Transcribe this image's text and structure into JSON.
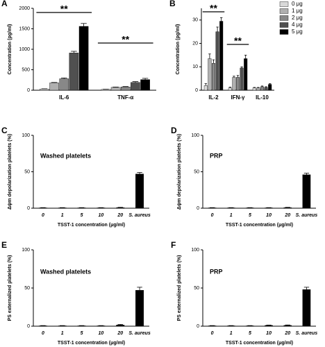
{
  "chart_data": [
    {
      "type": "bar",
      "label": "A",
      "ylabel": "Concentration (pg/ml)",
      "categories": [
        "IL-6",
        "TNF-α"
      ],
      "series": [
        {
          "name": "0 μg",
          "color": "#d9d9d9",
          "values": [
            30,
            20
          ],
          "errors": [
            5,
            4
          ]
        },
        {
          "name": "1 μg",
          "color": "#b0b0b0",
          "values": [
            180,
            70
          ],
          "errors": [
            10,
            8
          ]
        },
        {
          "name": "2 μg",
          "color": "#888888",
          "values": [
            280,
            80
          ],
          "errors": [
            20,
            10
          ]
        },
        {
          "name": "4 μg",
          "color": "#505050",
          "values": [
            910,
            190
          ],
          "errors": [
            40,
            20
          ]
        },
        {
          "name": "5 μg",
          "color": "#000000",
          "values": [
            1560,
            260
          ],
          "errors": [
            70,
            30
          ]
        }
      ],
      "ylim": [
        0,
        2000
      ],
      "yticks": [
        0,
        500,
        1000,
        1500,
        2000
      ],
      "annotations": [
        "**",
        "**"
      ]
    },
    {
      "type": "bar",
      "label": "B",
      "ylabel": "Concentration (pg/ml)",
      "categories": [
        "IL-2",
        "IFN-γ",
        "IL-10"
      ],
      "series": [
        {
          "name": "0 μg",
          "color": "#d9d9d9",
          "values": [
            2,
            1,
            1
          ],
          "errors": [
            0.8,
            0.3,
            0.2
          ]
        },
        {
          "name": "1 μg",
          "color": "#b0b0b0",
          "values": [
            13.5,
            5.5,
            1
          ],
          "errors": [
            2,
            0.5,
            0.2
          ]
        },
        {
          "name": "2 μg",
          "color": "#888888",
          "values": [
            11.5,
            5.5,
            1.5
          ],
          "errors": [
            1.5,
            0.8,
            0.3
          ]
        },
        {
          "name": "4 μg",
          "color": "#505050",
          "values": [
            25,
            9.5,
            1.2
          ],
          "errors": [
            2,
            0.5,
            0.3
          ]
        },
        {
          "name": "5 μg",
          "color": "#000000",
          "values": [
            29.5,
            13.5,
            2.5
          ],
          "errors": [
            1.5,
            1.5,
            0.3
          ]
        }
      ],
      "ylim": [
        0,
        35
      ],
      "yticks": [
        0,
        10,
        20,
        30
      ],
      "legend": "upper right",
      "annotations": [
        "**",
        "**"
      ]
    },
    {
      "type": "bar",
      "label": "C",
      "ylabel": "Δψm depolarization platelets (%)",
      "xlabel": "TSST-1 concentration (μg/ml)",
      "categories": [
        "0",
        "1",
        "5",
        "10",
        "20",
        "S. aureus"
      ],
      "color": "#000000",
      "values": [
        0.5,
        0.5,
        0.5,
        0.5,
        0.8,
        47
      ],
      "errors": [
        0.3,
        0.3,
        0.3,
        0.3,
        0.4,
        2
      ],
      "ylim": [
        0,
        100
      ],
      "yticks": [
        0,
        50,
        100
      ],
      "annotations": [
        "Washed platelets"
      ]
    },
    {
      "type": "bar",
      "label": "D",
      "ylabel": "Δψm depolarization platelets (%)",
      "xlabel": "TSST-1 concentration (μg/ml)",
      "categories": [
        "0",
        "1",
        "5",
        "10",
        "20",
        "S. aureus"
      ],
      "color": "#000000",
      "values": [
        0.5,
        0.5,
        0.5,
        0.5,
        0.8,
        46
      ],
      "errors": [
        0.3,
        0.3,
        0.3,
        0.3,
        0.4,
        2
      ],
      "ylim": [
        0,
        100
      ],
      "yticks": [
        0,
        50,
        100
      ],
      "annotations": [
        "PRP"
      ]
    },
    {
      "type": "bar",
      "label": "E",
      "ylabel": "PS externalized platelets (%)",
      "xlabel": "TSST-1 concentration (μg/ml)",
      "categories": [
        "0",
        "1",
        "5",
        "10",
        "20",
        "S. aureus"
      ],
      "color": "#000000",
      "values": [
        0.5,
        0.5,
        0.5,
        0.5,
        1.5,
        47
      ],
      "errors": [
        0.3,
        0.3,
        0.3,
        0.3,
        0.8,
        4
      ],
      "ylim": [
        0,
        100
      ],
      "yticks": [
        0,
        50,
        100
      ],
      "annotations": [
        "Washed platelets"
      ]
    },
    {
      "type": "bar",
      "label": "F",
      "ylabel": "PS externalized platelets (%)",
      "xlabel": "TSST-1 concentration (μg/ml)",
      "categories": [
        "0",
        "1",
        "5",
        "10",
        "20",
        "S. aureus"
      ],
      "color": "#000000",
      "values": [
        0.5,
        0.5,
        0.5,
        1,
        1,
        48
      ],
      "errors": [
        0.3,
        0.3,
        0.3,
        0.5,
        0.6,
        3
      ],
      "ylim": [
        0,
        100
      ],
      "yticks": [
        0,
        50,
        100
      ],
      "annotations": [
        "PRP"
      ]
    }
  ]
}
